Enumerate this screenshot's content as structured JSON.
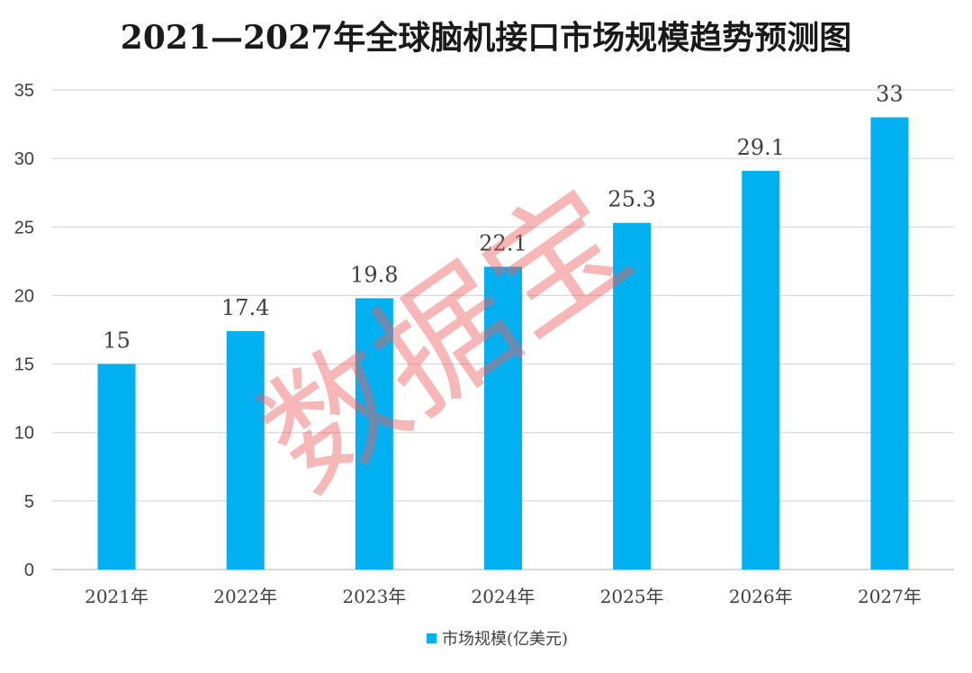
{
  "chart_data": {
    "type": "bar",
    "title": "2021—2027年全球脑机接口市场规模趋势预测图",
    "categories": [
      "2021年",
      "2022年",
      "2023年",
      "2024年",
      "2025年",
      "2026年",
      "2027年"
    ],
    "series": [
      {
        "name": "市场规模(亿美元)",
        "values": [
          15,
          17.4,
          19.8,
          22.1,
          25.3,
          29.1,
          33
        ],
        "labels": [
          "15",
          "17.4",
          "19.8",
          "22.1",
          "25.3",
          "29.1",
          "33"
        ]
      }
    ],
    "ylim": [
      0,
      35
    ],
    "yticks": [
      "0",
      "5",
      "10",
      "15",
      "20",
      "25",
      "30",
      "35"
    ],
    "grid": true,
    "legend_position": "bottom",
    "colors": {
      "bar": "#00B0F0",
      "grid": "#d9d9d9"
    }
  },
  "watermark": "数据宝"
}
